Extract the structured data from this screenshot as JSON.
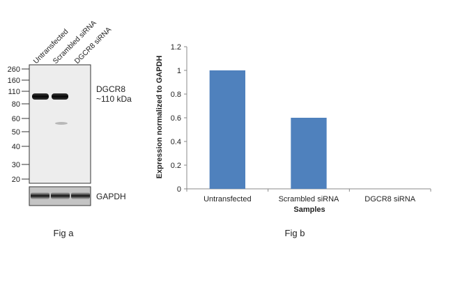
{
  "panel_a": {
    "lane_labels": [
      "Untransfected",
      "Scrambled siRNA",
      "DGCR8 siRNA"
    ],
    "marker_ladder": [
      "260",
      "160",
      "110",
      "80",
      "60",
      "50",
      "40",
      "30",
      "20"
    ],
    "target_label": "DGCR8",
    "target_size": "~110 kDa",
    "loading_control_label": "GAPDH",
    "caption": "Fig a"
  },
  "panel_b": {
    "caption": "Fig b"
  },
  "chart_data": {
    "type": "bar",
    "categories": [
      "Untransfected",
      "Scrambled siRNA",
      "DGCR8 siRNA"
    ],
    "values": [
      1.0,
      0.6,
      0.0
    ],
    "xlabel": "Samples",
    "ylabel": "Expression normalized to GAPDH",
    "ylim": [
      0,
      1.2
    ],
    "yticks": [
      "0",
      "0.2",
      "0.4",
      "0.6",
      "0.8",
      "1",
      "1.2"
    ],
    "bar_color": "#4f81bd",
    "grid": false,
    "legend": "none"
  }
}
